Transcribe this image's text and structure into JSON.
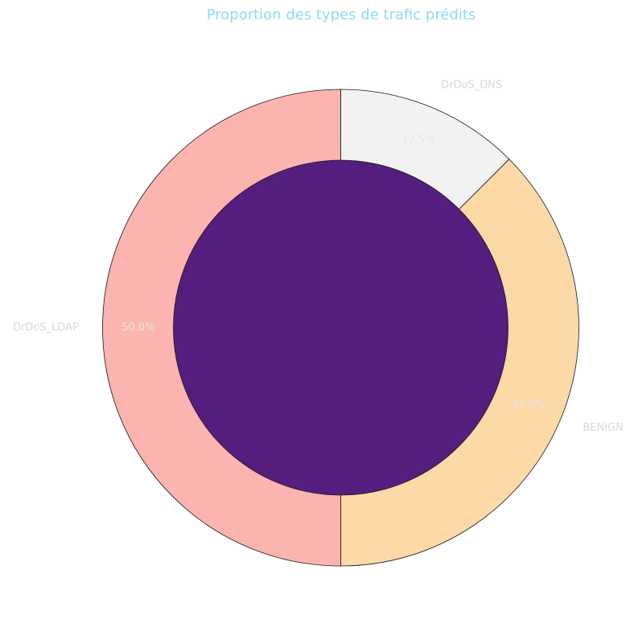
{
  "chart_data": {
    "type": "pie",
    "title": "Proportion des types de trafic prédits",
    "categories": [
      "DrDoS_DNS",
      "BENIGN",
      "DrDoS_LDAP"
    ],
    "values": [
      12.5,
      37.5,
      50.0
    ],
    "percent_labels": [
      "12.5%",
      "37.5%",
      "50.0%"
    ],
    "colors": [
      "#f2f2f2",
      "#fdd9a8",
      "#fbb4b0"
    ],
    "center_color": "#551d7d",
    "title_color": "#8fdcf2",
    "start_angle_deg": 90,
    "direction": "clockwise",
    "donut": true
  }
}
